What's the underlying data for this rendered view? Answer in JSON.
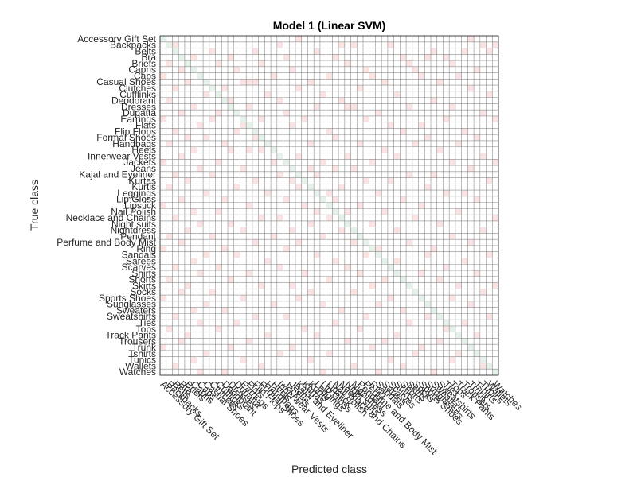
{
  "chart_data": {
    "type": "heatmap",
    "title": "Model 1 (Linear SVM)",
    "xlabel": "Predicted class",
    "ylabel": "True class",
    "classes": [
      "Accessory Gift Set",
      "Backpacks",
      "Belts",
      "Bra",
      "Briefs",
      "Capris",
      "Caps",
      "Casual Shoes",
      "Clutches",
      "Cufflinks",
      "Deodorant",
      "Dresses",
      "Dupatta",
      "Earrings",
      "Flats",
      "Flip Flops",
      "Formal Shoes",
      "Handbags",
      "Heels",
      "Innerwear Vests",
      "Jackets",
      "Jeans",
      "Kajal and Eyeliner",
      "Kurtas",
      "Kurtis",
      "Leggings",
      "Lip Gloss",
      "Lipstick",
      "Nail Polish",
      "Necklace and Chains",
      "Night suits",
      "Nightdress",
      "Pendant",
      "Perfume and Body Mist",
      "Ring",
      "Sandals",
      "Sarees",
      "Scarves",
      "Shirts",
      "Shorts",
      "Skirts",
      "Socks",
      "Sports Shoes",
      "Sunglasses",
      "Sweaters",
      "Sweatshirts",
      "Ties",
      "Tops",
      "Track Pants",
      "Trousers",
      "Trunk",
      "Tshirts",
      "Tunics",
      "Wallets",
      "Watches"
    ],
    "diagonal_color": "#e4f2ea",
    "offdiag_color": "#fbe3e3",
    "grid_color": "#8c8c8c",
    "grid": true,
    "offdiag_cells": [
      [
        0,
        22
      ],
      [
        0,
        50
      ],
      [
        1,
        2
      ],
      [
        1,
        19
      ],
      [
        1,
        29
      ],
      [
        1,
        31
      ],
      [
        1,
        37
      ],
      [
        1,
        52
      ],
      [
        1,
        54
      ],
      [
        2,
        8
      ],
      [
        2,
        15
      ],
      [
        2,
        25
      ],
      [
        2,
        44
      ],
      [
        2,
        49
      ],
      [
        2,
        53
      ],
      [
        3,
        5
      ],
      [
        3,
        11
      ],
      [
        3,
        20
      ],
      [
        3,
        28
      ],
      [
        3,
        39
      ],
      [
        3,
        43
      ],
      [
        3,
        46
      ],
      [
        4,
        1
      ],
      [
        4,
        9
      ],
      [
        4,
        16
      ],
      [
        4,
        30
      ],
      [
        4,
        40
      ],
      [
        4,
        47
      ],
      [
        5,
        3
      ],
      [
        5,
        12
      ],
      [
        5,
        21
      ],
      [
        5,
        33
      ],
      [
        5,
        41
      ],
      [
        5,
        51
      ],
      [
        6,
        0
      ],
      [
        6,
        6
      ],
      [
        6,
        18
      ],
      [
        6,
        27
      ],
      [
        6,
        34
      ],
      [
        6,
        42
      ],
      [
        6,
        48
      ],
      [
        7,
        4
      ],
      [
        7,
        13
      ],
      [
        7,
        14
      ],
      [
        7,
        15
      ],
      [
        7,
        24
      ],
      [
        7,
        36
      ],
      [
        7,
        45
      ],
      [
        8,
        2
      ],
      [
        8,
        10
      ],
      [
        8,
        22
      ],
      [
        8,
        32
      ],
      [
        8,
        50
      ],
      [
        9,
        7
      ],
      [
        9,
        17
      ],
      [
        9,
        26
      ],
      [
        9,
        38
      ],
      [
        9,
        53
      ],
      [
        10,
        1
      ],
      [
        10,
        11
      ],
      [
        10,
        19
      ],
      [
        10,
        29
      ],
      [
        10,
        44
      ],
      [
        11,
        5
      ],
      [
        11,
        14
      ],
      [
        11,
        25
      ],
      [
        11,
        30
      ],
      [
        11,
        31
      ],
      [
        11,
        40
      ],
      [
        11,
        47
      ],
      [
        12,
        3
      ],
      [
        12,
        9
      ],
      [
        12,
        20
      ],
      [
        12,
        35
      ],
      [
        12,
        52
      ],
      [
        13,
        0
      ],
      [
        13,
        8
      ],
      [
        13,
        16
      ],
      [
        13,
        23
      ],
      [
        13,
        33
      ],
      [
        13,
        46
      ],
      [
        13,
        54
      ],
      [
        14,
        6
      ],
      [
        14,
        13
      ],
      [
        14,
        21
      ],
      [
        14,
        37
      ],
      [
        14,
        42
      ],
      [
        15,
        2
      ],
      [
        15,
        12
      ],
      [
        15,
        27
      ],
      [
        15,
        39
      ],
      [
        15,
        49
      ],
      [
        16,
        4
      ],
      [
        16,
        7
      ],
      [
        16,
        15
      ],
      [
        16,
        28
      ],
      [
        16,
        43
      ],
      [
        16,
        51
      ],
      [
        17,
        1
      ],
      [
        17,
        10
      ],
      [
        17,
        24
      ],
      [
        17,
        32
      ],
      [
        17,
        41
      ],
      [
        17,
        48
      ],
      [
        18,
        5
      ],
      [
        18,
        11
      ],
      [
        18,
        14
      ],
      [
        18,
        16
      ],
      [
        18,
        36
      ],
      [
        18,
        45
      ],
      [
        19,
        3
      ],
      [
        19,
        22
      ],
      [
        19,
        30
      ],
      [
        19,
        38
      ],
      [
        19,
        52
      ],
      [
        20,
        0
      ],
      [
        20,
        9
      ],
      [
        20,
        18
      ],
      [
        20,
        26
      ],
      [
        20,
        34
      ],
      [
        20,
        47
      ],
      [
        20,
        54
      ],
      [
        21,
        6
      ],
      [
        21,
        13
      ],
      [
        21,
        24
      ],
      [
        21,
        28
      ],
      [
        21,
        31
      ],
      [
        21,
        50
      ],
      [
        22,
        2
      ],
      [
        22,
        8
      ],
      [
        22,
        19
      ],
      [
        22,
        25
      ],
      [
        22,
        40
      ],
      [
        22,
        44
      ],
      [
        23,
        4
      ],
      [
        23,
        15
      ],
      [
        23,
        21
      ],
      [
        23,
        33
      ],
      [
        23,
        37
      ],
      [
        23,
        53
      ],
      [
        24,
        1
      ],
      [
        24,
        12
      ],
      [
        24,
        22
      ],
      [
        24,
        29
      ],
      [
        24,
        43
      ],
      [
        25,
        7
      ],
      [
        25,
        17
      ],
      [
        25,
        27
      ],
      [
        25,
        35
      ],
      [
        25,
        46
      ],
      [
        25,
        49
      ],
      [
        26,
        3
      ],
      [
        26,
        10
      ],
      [
        26,
        20
      ],
      [
        26,
        28
      ],
      [
        26,
        39
      ],
      [
        26,
        51
      ],
      [
        27,
        0
      ],
      [
        27,
        14
      ],
      [
        27,
        23
      ],
      [
        27,
        32
      ],
      [
        27,
        42
      ],
      [
        28,
        5
      ],
      [
        28,
        9
      ],
      [
        28,
        25
      ],
      [
        28,
        30
      ],
      [
        28,
        36
      ],
      [
        28,
        48
      ],
      [
        29,
        2
      ],
      [
        29,
        16
      ],
      [
        29,
        19
      ],
      [
        29,
        27
      ],
      [
        29,
        41
      ],
      [
        29,
        54
      ],
      [
        30,
        6
      ],
      [
        30,
        11
      ],
      [
        30,
        24
      ],
      [
        30,
        34
      ],
      [
        30,
        45
      ],
      [
        31,
        4
      ],
      [
        31,
        13
      ],
      [
        31,
        21
      ],
      [
        31,
        29
      ],
      [
        31,
        38
      ],
      [
        31,
        52
      ],
      [
        32,
        1
      ],
      [
        32,
        8
      ],
      [
        32,
        18
      ],
      [
        32,
        26
      ],
      [
        32,
        47
      ],
      [
        33,
        3
      ],
      [
        33,
        15
      ],
      [
        33,
        22
      ],
      [
        33,
        31
      ],
      [
        33,
        40
      ],
      [
        33,
        50
      ],
      [
        34,
        0
      ],
      [
        34,
        10
      ],
      [
        34,
        20
      ],
      [
        34,
        35
      ],
      [
        34,
        44
      ],
      [
        35,
        7
      ],
      [
        35,
        12
      ],
      [
        35,
        25
      ],
      [
        35,
        33
      ],
      [
        35,
        43
      ],
      [
        35,
        53
      ],
      [
        36,
        5
      ],
      [
        36,
        17
      ],
      [
        36,
        28
      ],
      [
        36,
        38
      ],
      [
        36,
        49
      ],
      [
        37,
        2
      ],
      [
        37,
        9
      ],
      [
        37,
        19
      ],
      [
        37,
        30
      ],
      [
        37,
        46
      ],
      [
        38,
        6
      ],
      [
        38,
        14
      ],
      [
        38,
        23
      ],
      [
        38,
        32
      ],
      [
        38,
        42
      ],
      [
        38,
        51
      ],
      [
        39,
        1
      ],
      [
        39,
        11
      ],
      [
        39,
        27
      ],
      [
        39,
        36
      ],
      [
        39,
        45
      ],
      [
        40,
        4
      ],
      [
        40,
        16
      ],
      [
        40,
        21
      ],
      [
        40,
        34
      ],
      [
        40,
        48
      ],
      [
        40,
        54
      ],
      [
        41,
        3
      ],
      [
        41,
        8
      ],
      [
        41,
        24
      ],
      [
        41,
        31
      ],
      [
        41,
        41
      ],
      [
        41,
        52
      ],
      [
        42,
        0
      ],
      [
        42,
        13
      ],
      [
        42,
        22
      ],
      [
        42,
        37
      ],
      [
        42,
        47
      ],
      [
        43,
        7
      ],
      [
        43,
        18
      ],
      [
        43,
        26
      ],
      [
        43,
        35
      ],
      [
        43,
        50
      ],
      [
        44,
        5
      ],
      [
        44,
        10
      ],
      [
        44,
        29
      ],
      [
        44,
        39
      ],
      [
        44,
        44
      ],
      [
        45,
        2
      ],
      [
        45,
        15
      ],
      [
        45,
        20
      ],
      [
        45,
        33
      ],
      [
        45,
        43
      ],
      [
        45,
        53
      ],
      [
        46,
        6
      ],
      [
        46,
        12
      ],
      [
        46,
        28
      ],
      [
        46,
        40
      ],
      [
        46,
        49
      ],
      [
        47,
        1
      ],
      [
        47,
        9
      ],
      [
        47,
        23
      ],
      [
        47,
        32
      ],
      [
        47,
        46
      ],
      [
        48,
        4
      ],
      [
        48,
        17
      ],
      [
        48,
        25
      ],
      [
        48,
        38
      ],
      [
        48,
        51
      ],
      [
        49,
        3
      ],
      [
        49,
        14
      ],
      [
        49,
        30
      ],
      [
        49,
        36
      ],
      [
        49,
        45
      ],
      [
        50,
        0
      ],
      [
        50,
        11
      ],
      [
        50,
        21
      ],
      [
        50,
        34
      ],
      [
        50,
        42
      ],
      [
        51,
        7
      ],
      [
        51,
        19
      ],
      [
        51,
        27
      ],
      [
        51,
        41
      ],
      [
        51,
        48
      ],
      [
        52,
        5
      ],
      [
        52,
        13
      ],
      [
        52,
        24
      ],
      [
        52,
        37
      ],
      [
        52,
        47
      ],
      [
        53,
        2
      ],
      [
        53,
        16
      ],
      [
        53,
        31
      ],
      [
        53,
        39
      ],
      [
        53,
        52
      ],
      [
        54,
        6
      ],
      [
        54,
        10
      ],
      [
        54,
        26
      ],
      [
        54,
        35
      ],
      [
        54,
        44
      ]
    ]
  }
}
